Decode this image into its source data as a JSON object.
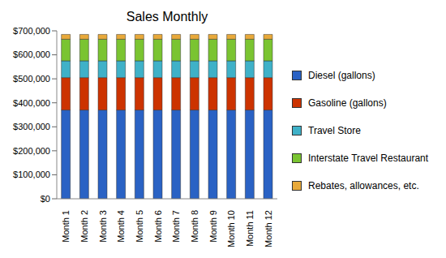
{
  "chart_data": {
    "type": "bar",
    "title": "Sales Monthly",
    "stacked": true,
    "grid": false,
    "legend": "right",
    "categories": [
      "Month 1",
      "Month 2",
      "Month 3",
      "Month 4",
      "Month 5",
      "Month 6",
      "Month 7",
      "Month 8",
      "Month 9",
      "Month 10",
      "Month 11",
      "Month 12"
    ],
    "series": [
      {
        "name": "Diesel (gallons)",
        "color": "#2a62c4",
        "values": [
          370000,
          370000,
          370000,
          370000,
          370000,
          370000,
          370000,
          370000,
          370000,
          370000,
          370000,
          370000
        ]
      },
      {
        "name": "Gasoline (gallons)",
        "color": "#cc3300",
        "values": [
          135000,
          135000,
          135000,
          135000,
          135000,
          135000,
          135000,
          135000,
          135000,
          135000,
          135000,
          135000
        ]
      },
      {
        "name": "Travel Store",
        "color": "#3fb1c8",
        "values": [
          70000,
          70000,
          70000,
          70000,
          70000,
          70000,
          70000,
          70000,
          70000,
          70000,
          70000,
          70000
        ]
      },
      {
        "name": "Interstate Travel Restaurant",
        "color": "#7ac431",
        "values": [
          90000,
          90000,
          90000,
          90000,
          90000,
          90000,
          90000,
          90000,
          90000,
          90000,
          90000,
          90000
        ]
      },
      {
        "name": "Rebates, allowances, etc.",
        "color": "#e8a93a",
        "values": [
          20000,
          20000,
          20000,
          20000,
          20000,
          20000,
          20000,
          20000,
          20000,
          20000,
          20000,
          20000
        ]
      }
    ],
    "ylim": [
      0,
      700000
    ],
    "yticks": [
      {
        "value": 0,
        "label": "$0"
      },
      {
        "value": 100000,
        "label": "$100,000"
      },
      {
        "value": 200000,
        "label": "$200,000"
      },
      {
        "value": 300000,
        "label": "$300,000"
      },
      {
        "value": 400000,
        "label": "$400,000"
      },
      {
        "value": 500000,
        "label": "$500,000"
      },
      {
        "value": 600000,
        "label": "$600,000"
      },
      {
        "value": 700000,
        "label": "$700,000"
      }
    ]
  }
}
